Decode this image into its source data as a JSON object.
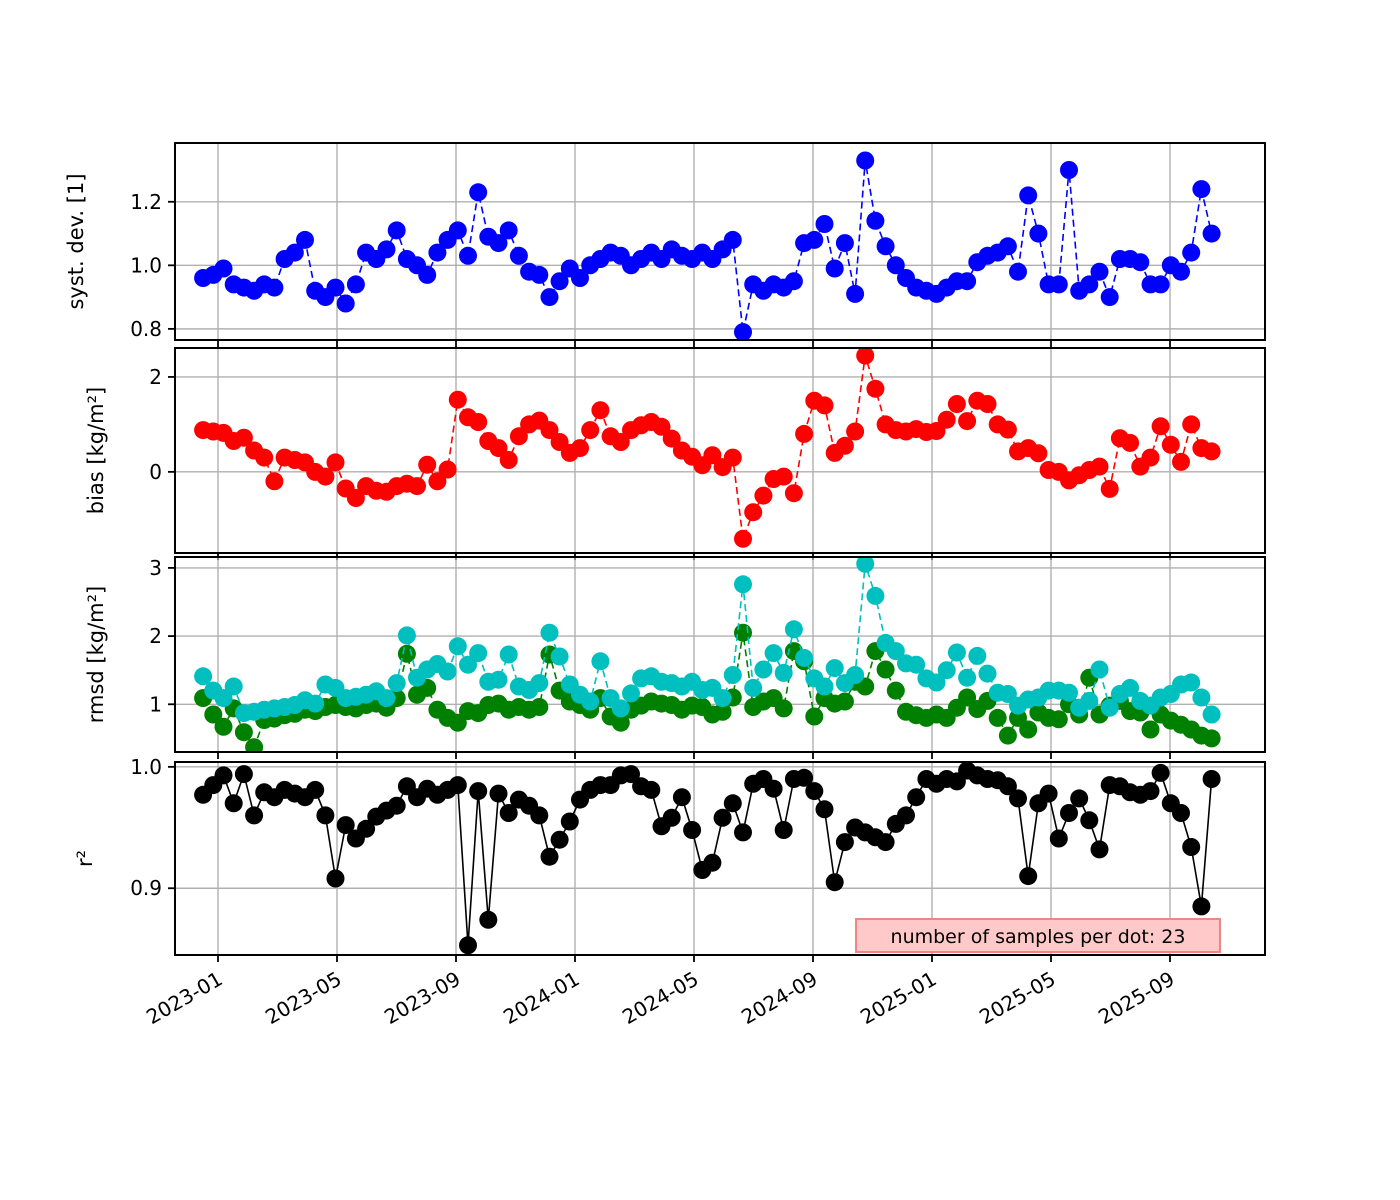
{
  "figure": {
    "background": "#ffffff",
    "grid_color": "#b0b0b0",
    "spine_color": "#000000"
  },
  "annotation": {
    "text": "number of samples per dot: 23",
    "bg_color": "#ffc9c9",
    "border_color": "#ef8683",
    "text_color": "#262626"
  },
  "chart_data": {
    "type": "line",
    "title": "",
    "x": {
      "origin": "2023-01-01",
      "unit": "months_since_2023_01",
      "start_months": -0.5,
      "step_months": 0.3424,
      "count": 100
    },
    "x_ticks": {
      "months": [
        0,
        4,
        8,
        12,
        16,
        20,
        24,
        28,
        32
      ],
      "labels": [
        "2023-01",
        "2023-05",
        "2023-09",
        "2024-01",
        "2024-05",
        "2024-09",
        "2025-01",
        "2025-05",
        "2025-09"
      ],
      "rotation_deg": -30
    },
    "legend_position": "none",
    "grid": true,
    "panels": [
      {
        "ylabel": "syst. dev. [1]",
        "yticks": [
          0.8,
          1.0,
          1.2
        ],
        "ytick_labels": [
          "0.8",
          "1.0",
          "1.2"
        ],
        "ylim": [
          0.765,
          1.385
        ],
        "series": [
          {
            "name": "syst-dev",
            "color": "#0000ff",
            "linestyle": "dashed",
            "values": [
              0.96,
              0.97,
              0.99,
              0.94,
              0.93,
              0.92,
              0.94,
              0.93,
              1.02,
              1.04,
              1.08,
              0.92,
              0.9,
              0.93,
              0.88,
              0.94,
              1.04,
              1.02,
              1.05,
              1.11,
              1.02,
              1.0,
              0.97,
              1.04,
              1.08,
              1.11,
              1.03,
              1.23,
              1.09,
              1.07,
              1.11,
              1.03,
              0.98,
              0.97,
              0.9,
              0.95,
              0.99,
              0.96,
              1.0,
              1.02,
              1.04,
              1.03,
              1.0,
              1.02,
              1.04,
              1.02,
              1.05,
              1.03,
              1.02,
              1.04,
              1.02,
              1.05,
              1.08,
              0.79,
              0.94,
              0.92,
              0.94,
              0.93,
              0.95,
              1.07,
              1.08,
              1.13,
              0.99,
              1.07,
              0.91,
              1.33,
              1.14,
              1.06,
              1.0,
              0.96,
              0.93,
              0.92,
              0.91,
              0.93,
              0.95,
              0.95,
              1.01,
              1.03,
              1.04,
              1.06,
              0.98,
              1.22,
              1.1,
              0.94,
              0.94,
              1.3,
              0.92,
              0.94,
              0.98,
              0.9,
              1.02,
              1.02,
              1.01,
              0.94,
              0.94,
              1.0,
              0.98,
              1.04,
              1.24,
              1.1
            ]
          }
        ]
      },
      {
        "ylabel": "bias [kg/m²]",
        "yticks": [
          0,
          2
        ],
        "ytick_labels": [
          "0",
          "2"
        ],
        "ylim": [
          -1.71,
          2.61
        ],
        "series": [
          {
            "name": "bias",
            "color": "#ff0000",
            "linestyle": "dashed",
            "values": [
              0.88,
              0.85,
              0.82,
              0.65,
              0.72,
              0.45,
              0.3,
              -0.2,
              0.3,
              0.25,
              0.2,
              0.0,
              -0.1,
              0.2,
              -0.35,
              -0.55,
              -0.3,
              -0.4,
              -0.42,
              -0.3,
              -0.25,
              -0.3,
              0.15,
              -0.2,
              0.05,
              1.52,
              1.15,
              1.05,
              0.65,
              0.5,
              0.25,
              0.75,
              1.0,
              1.08,
              0.88,
              0.63,
              0.4,
              0.5,
              0.88,
              1.3,
              0.75,
              0.63,
              0.88,
              0.98,
              1.05,
              0.95,
              0.7,
              0.45,
              0.32,
              0.14,
              0.35,
              0.1,
              0.3,
              -1.41,
              -0.85,
              -0.5,
              -0.15,
              -0.1,
              -0.45,
              0.8,
              1.5,
              1.4,
              0.4,
              0.55,
              0.85,
              2.45,
              1.75,
              1.0,
              0.88,
              0.85,
              0.9,
              0.84,
              0.86,
              1.1,
              1.43,
              1.07,
              1.5,
              1.43,
              1.0,
              0.89,
              0.43,
              0.5,
              0.39,
              0.04,
              0.0,
              -0.18,
              -0.07,
              0.04,
              0.11,
              -0.36,
              0.71,
              0.61,
              0.11,
              0.3,
              0.96,
              0.57,
              0.21,
              1.0,
              0.5,
              0.43
            ]
          }
        ]
      },
      {
        "ylabel": "rmsd [kg/m²]",
        "yticks": [
          1,
          2,
          3
        ],
        "ytick_labels": [
          "1",
          "2",
          "3"
        ],
        "ylim": [
          0.3,
          3.16
        ],
        "series": [
          {
            "name": "rmsd-green",
            "color": "#008000",
            "linestyle": "dashed",
            "values": [
              1.09,
              0.85,
              0.67,
              0.94,
              0.59,
              0.37,
              0.77,
              0.79,
              0.84,
              0.86,
              0.92,
              0.9,
              0.96,
              0.99,
              0.96,
              0.94,
              0.99,
              1.01,
              0.95,
              1.09,
              1.74,
              1.14,
              1.24,
              0.92,
              0.8,
              0.73,
              0.9,
              0.87,
              0.99,
              1.01,
              0.92,
              0.96,
              0.92,
              0.96,
              1.73,
              1.2,
              1.04,
              0.99,
              0.92,
              1.09,
              0.82,
              0.73,
              0.92,
              0.98,
              1.04,
              1.01,
              0.99,
              0.92,
              0.98,
              0.96,
              0.85,
              0.89,
              1.1,
              2.05,
              0.96,
              1.04,
              1.09,
              0.94,
              1.78,
              1.63,
              0.82,
              1.09,
              1.01,
              1.04,
              1.33,
              1.26,
              1.78,
              1.51,
              1.2,
              0.89,
              0.84,
              0.8,
              0.85,
              0.8,
              0.95,
              1.1,
              0.93,
              1.05,
              0.8,
              0.54,
              0.8,
              0.63,
              0.88,
              0.8,
              0.78,
              1.0,
              0.85,
              1.39,
              0.85,
              0.98,
              1.05,
              0.9,
              0.88,
              0.63,
              0.85,
              0.76,
              0.7,
              0.63,
              0.54,
              0.5
            ]
          },
          {
            "name": "rmsd-cyan",
            "color": "#00bfbf",
            "linestyle": "dashed",
            "values": [
              1.41,
              1.2,
              1.09,
              1.26,
              0.87,
              0.89,
              0.92,
              0.94,
              0.96,
              0.99,
              1.06,
              1.01,
              1.29,
              1.24,
              1.09,
              1.11,
              1.14,
              1.19,
              1.09,
              1.31,
              2.01,
              1.39,
              1.51,
              1.59,
              1.48,
              1.85,
              1.58,
              1.75,
              1.33,
              1.36,
              1.73,
              1.26,
              1.21,
              1.31,
              2.05,
              1.7,
              1.29,
              1.14,
              1.04,
              1.63,
              1.09,
              0.94,
              1.16,
              1.38,
              1.41,
              1.33,
              1.31,
              1.26,
              1.33,
              1.21,
              1.24,
              1.09,
              1.43,
              2.76,
              1.24,
              1.51,
              1.75,
              1.46,
              2.1,
              1.68,
              1.38,
              1.26,
              1.53,
              1.31,
              1.43,
              3.06,
              2.59,
              1.9,
              1.78,
              1.6,
              1.58,
              1.38,
              1.32,
              1.5,
              1.76,
              1.39,
              1.71,
              1.45,
              1.17,
              1.15,
              0.98,
              1.07,
              1.1,
              1.2,
              1.2,
              1.17,
              0.95,
              1.05,
              1.51,
              0.95,
              1.15,
              1.24,
              1.05,
              0.98,
              1.1,
              1.15,
              1.29,
              1.32,
              1.1,
              0.85
            ]
          }
        ]
      },
      {
        "ylabel": "r²",
        "yticks": [
          0.9,
          1.0
        ],
        "ytick_labels": [
          "0.9",
          "1.0"
        ],
        "ylim": [
          0.845,
          1.004
        ],
        "series": [
          {
            "name": "r-squared",
            "color": "#000000",
            "linestyle": "solid",
            "values": [
              0.977,
              0.985,
              0.993,
              0.97,
              0.994,
              0.96,
              0.979,
              0.975,
              0.981,
              0.978,
              0.975,
              0.981,
              0.96,
              0.908,
              0.952,
              0.941,
              0.949,
              0.959,
              0.964,
              0.968,
              0.984,
              0.975,
              0.982,
              0.977,
              0.981,
              0.985,
              0.853,
              0.98,
              0.874,
              0.978,
              0.962,
              0.973,
              0.968,
              0.96,
              0.926,
              0.94,
              0.955,
              0.973,
              0.981,
              0.985,
              0.985,
              0.993,
              0.994,
              0.984,
              0.981,
              0.951,
              0.958,
              0.975,
              0.948,
              0.915,
              0.921,
              0.958,
              0.97,
              0.946,
              0.986,
              0.99,
              0.982,
              0.948,
              0.99,
              0.991,
              0.98,
              0.965,
              0.905,
              0.938,
              0.95,
              0.946,
              0.942,
              0.938,
              0.953,
              0.96,
              0.975,
              0.99,
              0.986,
              0.99,
              0.988,
              0.997,
              0.993,
              0.99,
              0.989,
              0.984,
              0.974,
              0.91,
              0.97,
              0.978,
              0.941,
              0.962,
              0.974,
              0.956,
              0.932,
              0.985,
              0.984,
              0.979,
              0.977,
              0.98,
              0.995,
              0.97,
              0.962,
              0.934,
              0.885,
              0.99
            ]
          }
        ]
      }
    ]
  }
}
